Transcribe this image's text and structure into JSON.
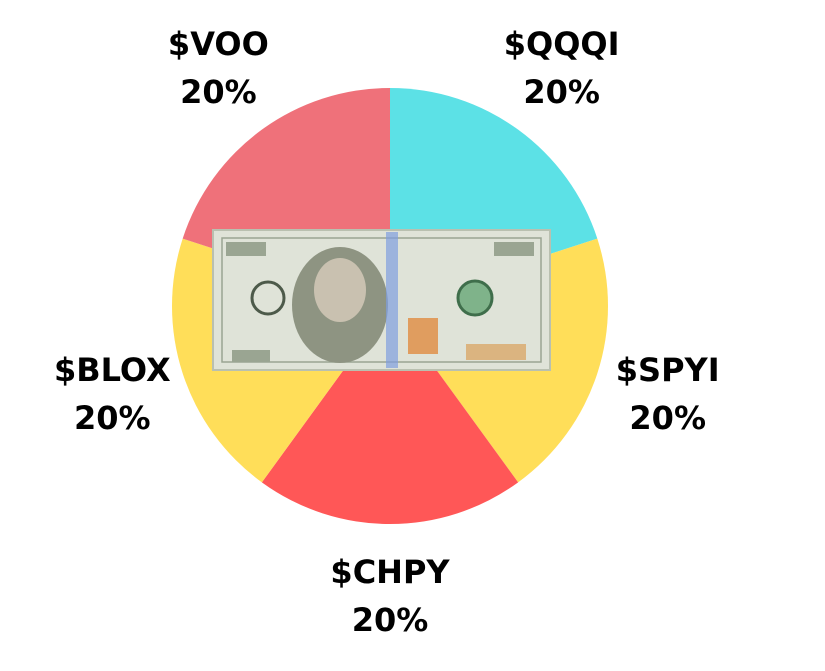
{
  "chart_data": {
    "type": "pie",
    "categories": [
      "$QQQI",
      "$SPYI",
      "$CHPY",
      "$BLOX",
      "$VOO"
    ],
    "values": [
      20,
      20,
      20,
      20,
      20
    ],
    "value_labels": [
      "20%",
      "20%",
      "20%",
      "20%",
      "20%"
    ],
    "colors": [
      "#5ce1e6",
      "#ffde59",
      "#ff5757",
      "#ffde59",
      "#ef717a"
    ]
  }
}
